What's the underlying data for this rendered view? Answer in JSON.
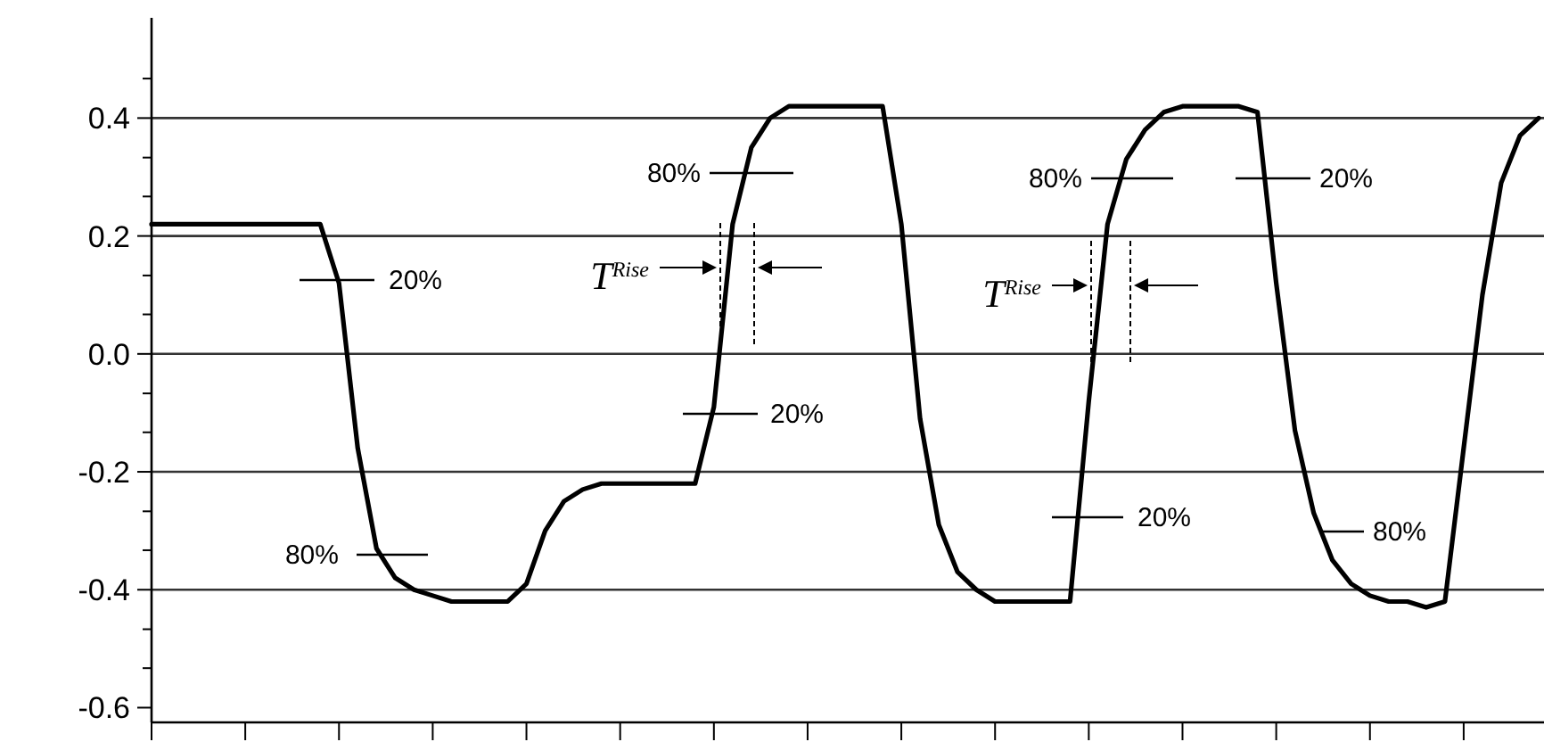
{
  "chart_data": {
    "type": "line",
    "categories": [
      null,
      null,
      null,
      null,
      null,
      null,
      null,
      null,
      null,
      null,
      null,
      null,
      null,
      null,
      null,
      null,
      null,
      null,
      null,
      null,
      null,
      null,
      null,
      null,
      null,
      null,
      null,
      null,
      null,
      null,
      null,
      null,
      null,
      null,
      null,
      null,
      null,
      null,
      null,
      null,
      null,
      null,
      null,
      null,
      null,
      null,
      null,
      null,
      null,
      null,
      null,
      null,
      null,
      null,
      null,
      null,
      null,
      null,
      null,
      null,
      null,
      null,
      null,
      null,
      null,
      null,
      null,
      null,
      null,
      null,
      null,
      null,
      null,
      null,
      null
    ],
    "series": [
      {
        "color": "#000000",
        "values": [
          0.22,
          0.22,
          0.22,
          0.22,
          0.22,
          0.22,
          0.22,
          0.22,
          0.22,
          0.22,
          0.12,
          -0.16,
          -0.33,
          -0.38,
          -0.4,
          -0.41,
          -0.42,
          -0.42,
          -0.42,
          -0.42,
          -0.39,
          -0.3,
          -0.25,
          -0.23,
          -0.22,
          -0.22,
          -0.22,
          -0.22,
          -0.22,
          -0.22,
          -0.09,
          0.22,
          0.35,
          0.4,
          0.42,
          0.42,
          0.42,
          0.42,
          0.42,
          0.42,
          0.22,
          -0.11,
          -0.29,
          -0.37,
          -0.4,
          -0.42,
          -0.42,
          -0.42,
          -0.42,
          -0.42,
          -0.08,
          0.22,
          0.33,
          0.38,
          0.41,
          0.42,
          0.42,
          0.42,
          0.42,
          0.41,
          0.12,
          -0.13,
          -0.27,
          -0.35,
          -0.39,
          -0.41,
          -0.42,
          -0.42,
          -0.43,
          -0.42,
          -0.16,
          0.1,
          0.29,
          0.37,
          0.4
        ]
      }
    ],
    "ylim": [
      -0.625,
      0.57
    ],
    "yticks": [
      {
        "value": 0.4,
        "label": "0.4"
      },
      {
        "value": 0.2,
        "label": "0.2"
      },
      {
        "value": 0,
        "label": "0.0"
      },
      {
        "value": -0.2,
        "label": "-0.2"
      },
      {
        "value": -0.4,
        "label": "-0.4"
      },
      {
        "value": -0.6,
        "label": "-0.6"
      },
      {
        "value": 0.467,
        "label": null
      },
      {
        "value": 0.333,
        "label": null
      },
      {
        "value": 0.267,
        "label": null
      },
      {
        "value": 0.133,
        "label": null
      },
      {
        "value": 0.067,
        "label": null
      },
      {
        "value": -0.067,
        "label": null
      },
      {
        "value": -0.133,
        "label": null
      },
      {
        "value": -0.267,
        "label": null
      },
      {
        "value": -0.333,
        "label": null
      },
      {
        "value": -0.467,
        "label": null
      },
      {
        "value": -0.533,
        "label": null
      }
    ],
    "tick_labels": "y",
    "grid": "y",
    "marker": "none",
    "line_style": "solid",
    "annotations": [
      "20%",
      "80%",
      "80%",
      "20%",
      "80%",
      "20%",
      "20%",
      "80%",
      "T$^{Rise}$",
      "T$^{Rise}$"
    ]
  }
}
